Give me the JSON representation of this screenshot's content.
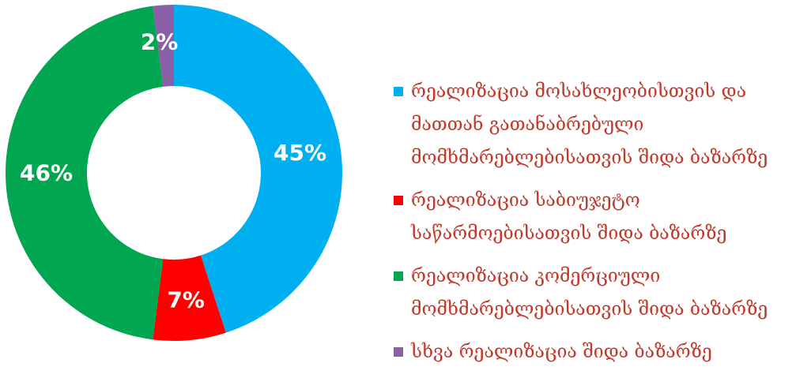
{
  "chart_data": {
    "type": "pie",
    "donut": true,
    "legend_position": "right",
    "slices": [
      {
        "label": "რეალიზაცია მოსახლეობისთვის და მათთან გათანაბრებული მომხმარებლებისათვის შიდა ბაზარზე",
        "value": 45,
        "value_label": "45%",
        "color": "#00aff0"
      },
      {
        "label": "რეალიზაცია საბიუჯეტო საწარმოებისათვის შიდა ბაზარზე",
        "value": 7,
        "value_label": "7%",
        "color": "#ff0000"
      },
      {
        "label": "რეალიზაცია კომერციული მომხმარებლებისათვის შიდა ბაზარზე",
        "value": 46,
        "value_label": "46%",
        "color": "#00a650"
      },
      {
        "label": "სხვა რეალიზაცია შიდა ბაზარზე",
        "value": 2,
        "value_label": "2%",
        "color": "#8b5fa8"
      }
    ],
    "legend_text_color": "#c0392b"
  }
}
